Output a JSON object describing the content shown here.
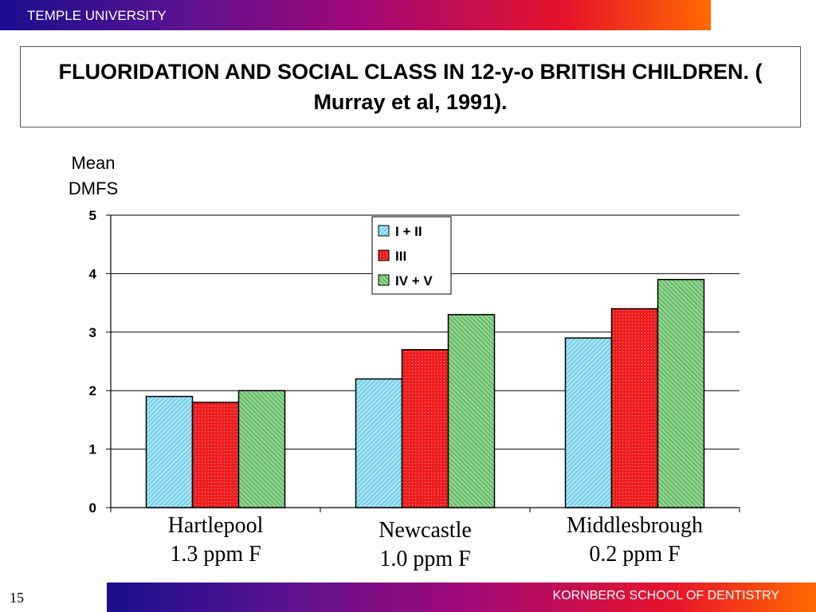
{
  "header": {
    "institution": "TEMPLE UNIVERSITY"
  },
  "footer": {
    "school": "KORNBERG SCHOOL OF DENTISTRY",
    "slide_number": "15"
  },
  "chart_data": {
    "type": "bar",
    "title": "FLUORIDATION AND SOCIAL CLASS IN 12-y-o BRITISH CHILDREN.   ( Murray et al, 1991).",
    "ylabel_lines": [
      "Mean",
      "DMFS"
    ],
    "xlabel": "",
    "ylim": [
      0,
      5
    ],
    "yticks": [
      "0",
      "1",
      "2",
      "3",
      "4",
      "5"
    ],
    "grid": true,
    "legend_position": "top-center",
    "categories": [
      {
        "line1": "Hartlepool",
        "line2": "1.3 ppm F"
      },
      {
        "line1": "Newcastle",
        "line2": "1.0 ppm F"
      },
      {
        "line1": "Middlesbrough",
        "line2": "0.2 ppm F"
      }
    ],
    "series": [
      {
        "name": "I + II",
        "values": [
          1.9,
          2.2,
          2.9
        ],
        "color": "#7ad4ec"
      },
      {
        "name": "III",
        "values": [
          1.8,
          2.7,
          3.4
        ],
        "color": "#f21c1c"
      },
      {
        "name": "IV + V",
        "values": [
          2.0,
          3.3,
          3.9
        ],
        "color": "#8fd48f"
      }
    ]
  }
}
